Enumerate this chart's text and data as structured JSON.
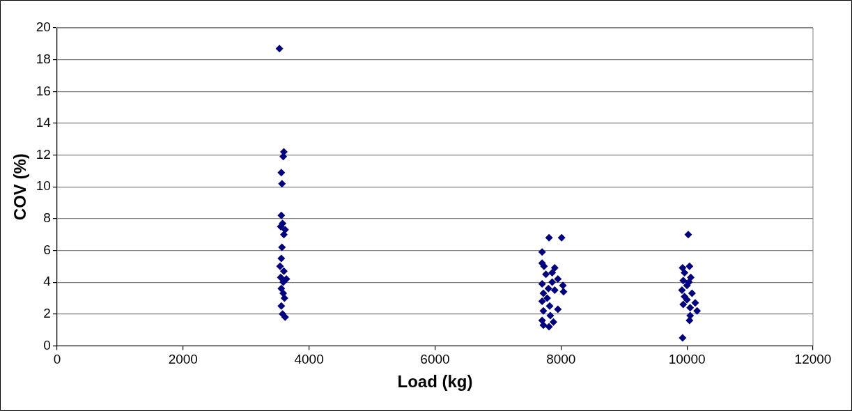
{
  "chart_data": {
    "type": "scatter",
    "xlabel": "Load (kg)",
    "ylabel": "COV (%)",
    "xlim": [
      0,
      12000
    ],
    "xticks": [
      0,
      2000,
      4000,
      6000,
      8000,
      10000,
      12000
    ],
    "ylim": [
      0,
      20
    ],
    "yticks": [
      0,
      2,
      4,
      6,
      8,
      10,
      12,
      14,
      16,
      18,
      20
    ],
    "grid": "y",
    "legend": false,
    "marker": "diamond",
    "series": [
      {
        "color": "#000080",
        "x": [
          3530,
          3600,
          3590,
          3560,
          3570,
          3560,
          3580,
          3550,
          3620,
          3600,
          3570,
          3560,
          3540,
          3600,
          3550,
          3640,
          3590,
          3560,
          3590,
          3610,
          3560,
          3580,
          3620,
          7810,
          8010,
          7700,
          7700,
          7730,
          7900,
          7860,
          7760,
          7950,
          7700,
          8030,
          7800,
          7900,
          8040,
          7720,
          7780,
          7700,
          7820,
          7950,
          7720,
          7830,
          7700,
          7880,
          7720,
          7810,
          7860,
          10020,
          10040,
          9930,
          9960,
          10060,
          9940,
          10000,
          9920,
          10080,
          9960,
          10000,
          10130,
          9940,
          10050,
          10160,
          10050,
          10040,
          9930,
          10030
        ],
        "values": [
          18.7,
          12.2,
          11.9,
          10.9,
          10.2,
          8.2,
          7.7,
          7.5,
          7.3,
          7.0,
          6.2,
          5.5,
          5.0,
          4.7,
          4.3,
          4.2,
          4.0,
          3.6,
          3.3,
          3.0,
          2.5,
          2.0,
          1.8,
          6.8,
          6.8,
          5.9,
          5.2,
          5.0,
          4.9,
          4.6,
          4.5,
          4.2,
          3.9,
          3.8,
          3.6,
          3.5,
          3.4,
          3.3,
          3.0,
          2.8,
          2.5,
          2.3,
          2.2,
          1.9,
          1.6,
          1.5,
          1.3,
          1.2,
          4.0,
          7.0,
          5.0,
          4.9,
          4.6,
          4.3,
          4.1,
          3.8,
          3.5,
          3.3,
          3.1,
          2.9,
          2.7,
          2.6,
          2.4,
          2.2,
          1.9,
          1.6,
          0.5,
          4.0
        ]
      }
    ]
  }
}
